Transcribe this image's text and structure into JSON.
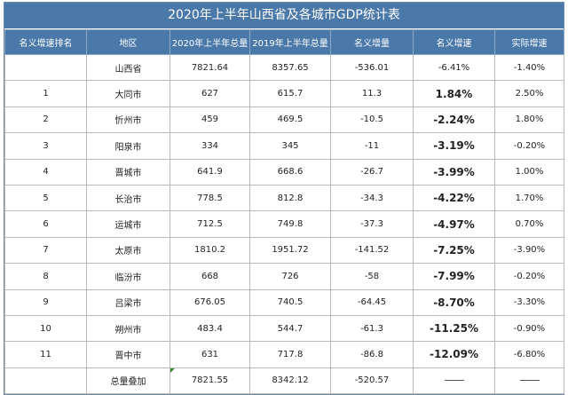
{
  "title": "2020年上半年山西省及各城市GDP统计表",
  "headers": [
    "名义增速排名",
    "地区",
    "2020年上半年总量",
    "2019年上半年总量",
    "名义增量",
    "名义增速",
    "实际增速"
  ],
  "rows": [
    {
      "rank": "",
      "region": "山西省",
      "gdp2020": "7821.64",
      "gdp2019": "8357.65",
      "increment": "-536.01",
      "nominal_growth": "-6.41%",
      "real_growth": "-1.40%",
      "growth_bold": false
    },
    {
      "rank": "1",
      "region": "大同市",
      "gdp2020": "627",
      "gdp2019": "615.7",
      "increment": "11.3",
      "nominal_growth": "1.84%",
      "real_growth": "2.50%",
      "growth_bold": true
    },
    {
      "rank": "2",
      "region": "忻州市",
      "gdp2020": "459",
      "gdp2019": "469.5",
      "increment": "-10.5",
      "nominal_growth": "-2.24%",
      "real_growth": "1.80%",
      "growth_bold": true
    },
    {
      "rank": "3",
      "region": "阳泉市",
      "gdp2020": "334",
      "gdp2019": "345",
      "increment": "-11",
      "nominal_growth": "-3.19%",
      "real_growth": "-0.20%",
      "growth_bold": true
    },
    {
      "rank": "4",
      "region": "晋城市",
      "gdp2020": "641.9",
      "gdp2019": "668.6",
      "increment": "-26.7",
      "nominal_growth": "-3.99%",
      "real_growth": "1.00%",
      "growth_bold": true
    },
    {
      "rank": "5",
      "region": "长治市",
      "gdp2020": "778.5",
      "gdp2019": "812.8",
      "increment": "-34.3",
      "nominal_growth": "-4.22%",
      "real_growth": "1.70%",
      "growth_bold": true
    },
    {
      "rank": "6",
      "region": "运城市",
      "gdp2020": "712.5",
      "gdp2019": "749.8",
      "increment": "-37.3",
      "nominal_growth": "-4.97%",
      "real_growth": "0.70%",
      "growth_bold": true
    },
    {
      "rank": "7",
      "region": "太原市",
      "gdp2020": "1810.2",
      "gdp2019": "1951.72",
      "increment": "-141.52",
      "nominal_growth": "-7.25%",
      "real_growth": "-3.90%",
      "growth_bold": true
    },
    {
      "rank": "8",
      "region": "临汾市",
      "gdp2020": "668",
      "gdp2019": "726",
      "increment": "-58",
      "nominal_growth": "-7.99%",
      "real_growth": "-0.20%",
      "growth_bold": true
    },
    {
      "rank": "9",
      "region": "吕梁市",
      "gdp2020": "676.05",
      "gdp2019": "740.5",
      "increment": "-64.45",
      "nominal_growth": "-8.70%",
      "real_growth": "-3.30%",
      "growth_bold": true
    },
    {
      "rank": "10",
      "region": "朔州市",
      "gdp2020": "483.4",
      "gdp2019": "544.7",
      "increment": "-61.3",
      "nominal_growth": "-11.25%",
      "real_growth": "-0.90%",
      "growth_bold": true
    },
    {
      "rank": "11",
      "region": "晋中市",
      "gdp2020": "631",
      "gdp2019": "717.8",
      "increment": "-86.8",
      "nominal_growth": "-12.09%",
      "real_growth": "-6.80%",
      "growth_bold": true
    }
  ],
  "total_row": {
    "rank": "",
    "region": "总量叠加",
    "gdp2020": "7821.55",
    "gdp2019": "8342.12",
    "increment": "-520.57",
    "nominal_growth": "",
    "real_growth": ""
  },
  "colors": {
    "header_bg": "#4a78a8",
    "header_text": "#ffffff",
    "grid": "#b9b9b9",
    "marker": "#3a8a3a"
  }
}
